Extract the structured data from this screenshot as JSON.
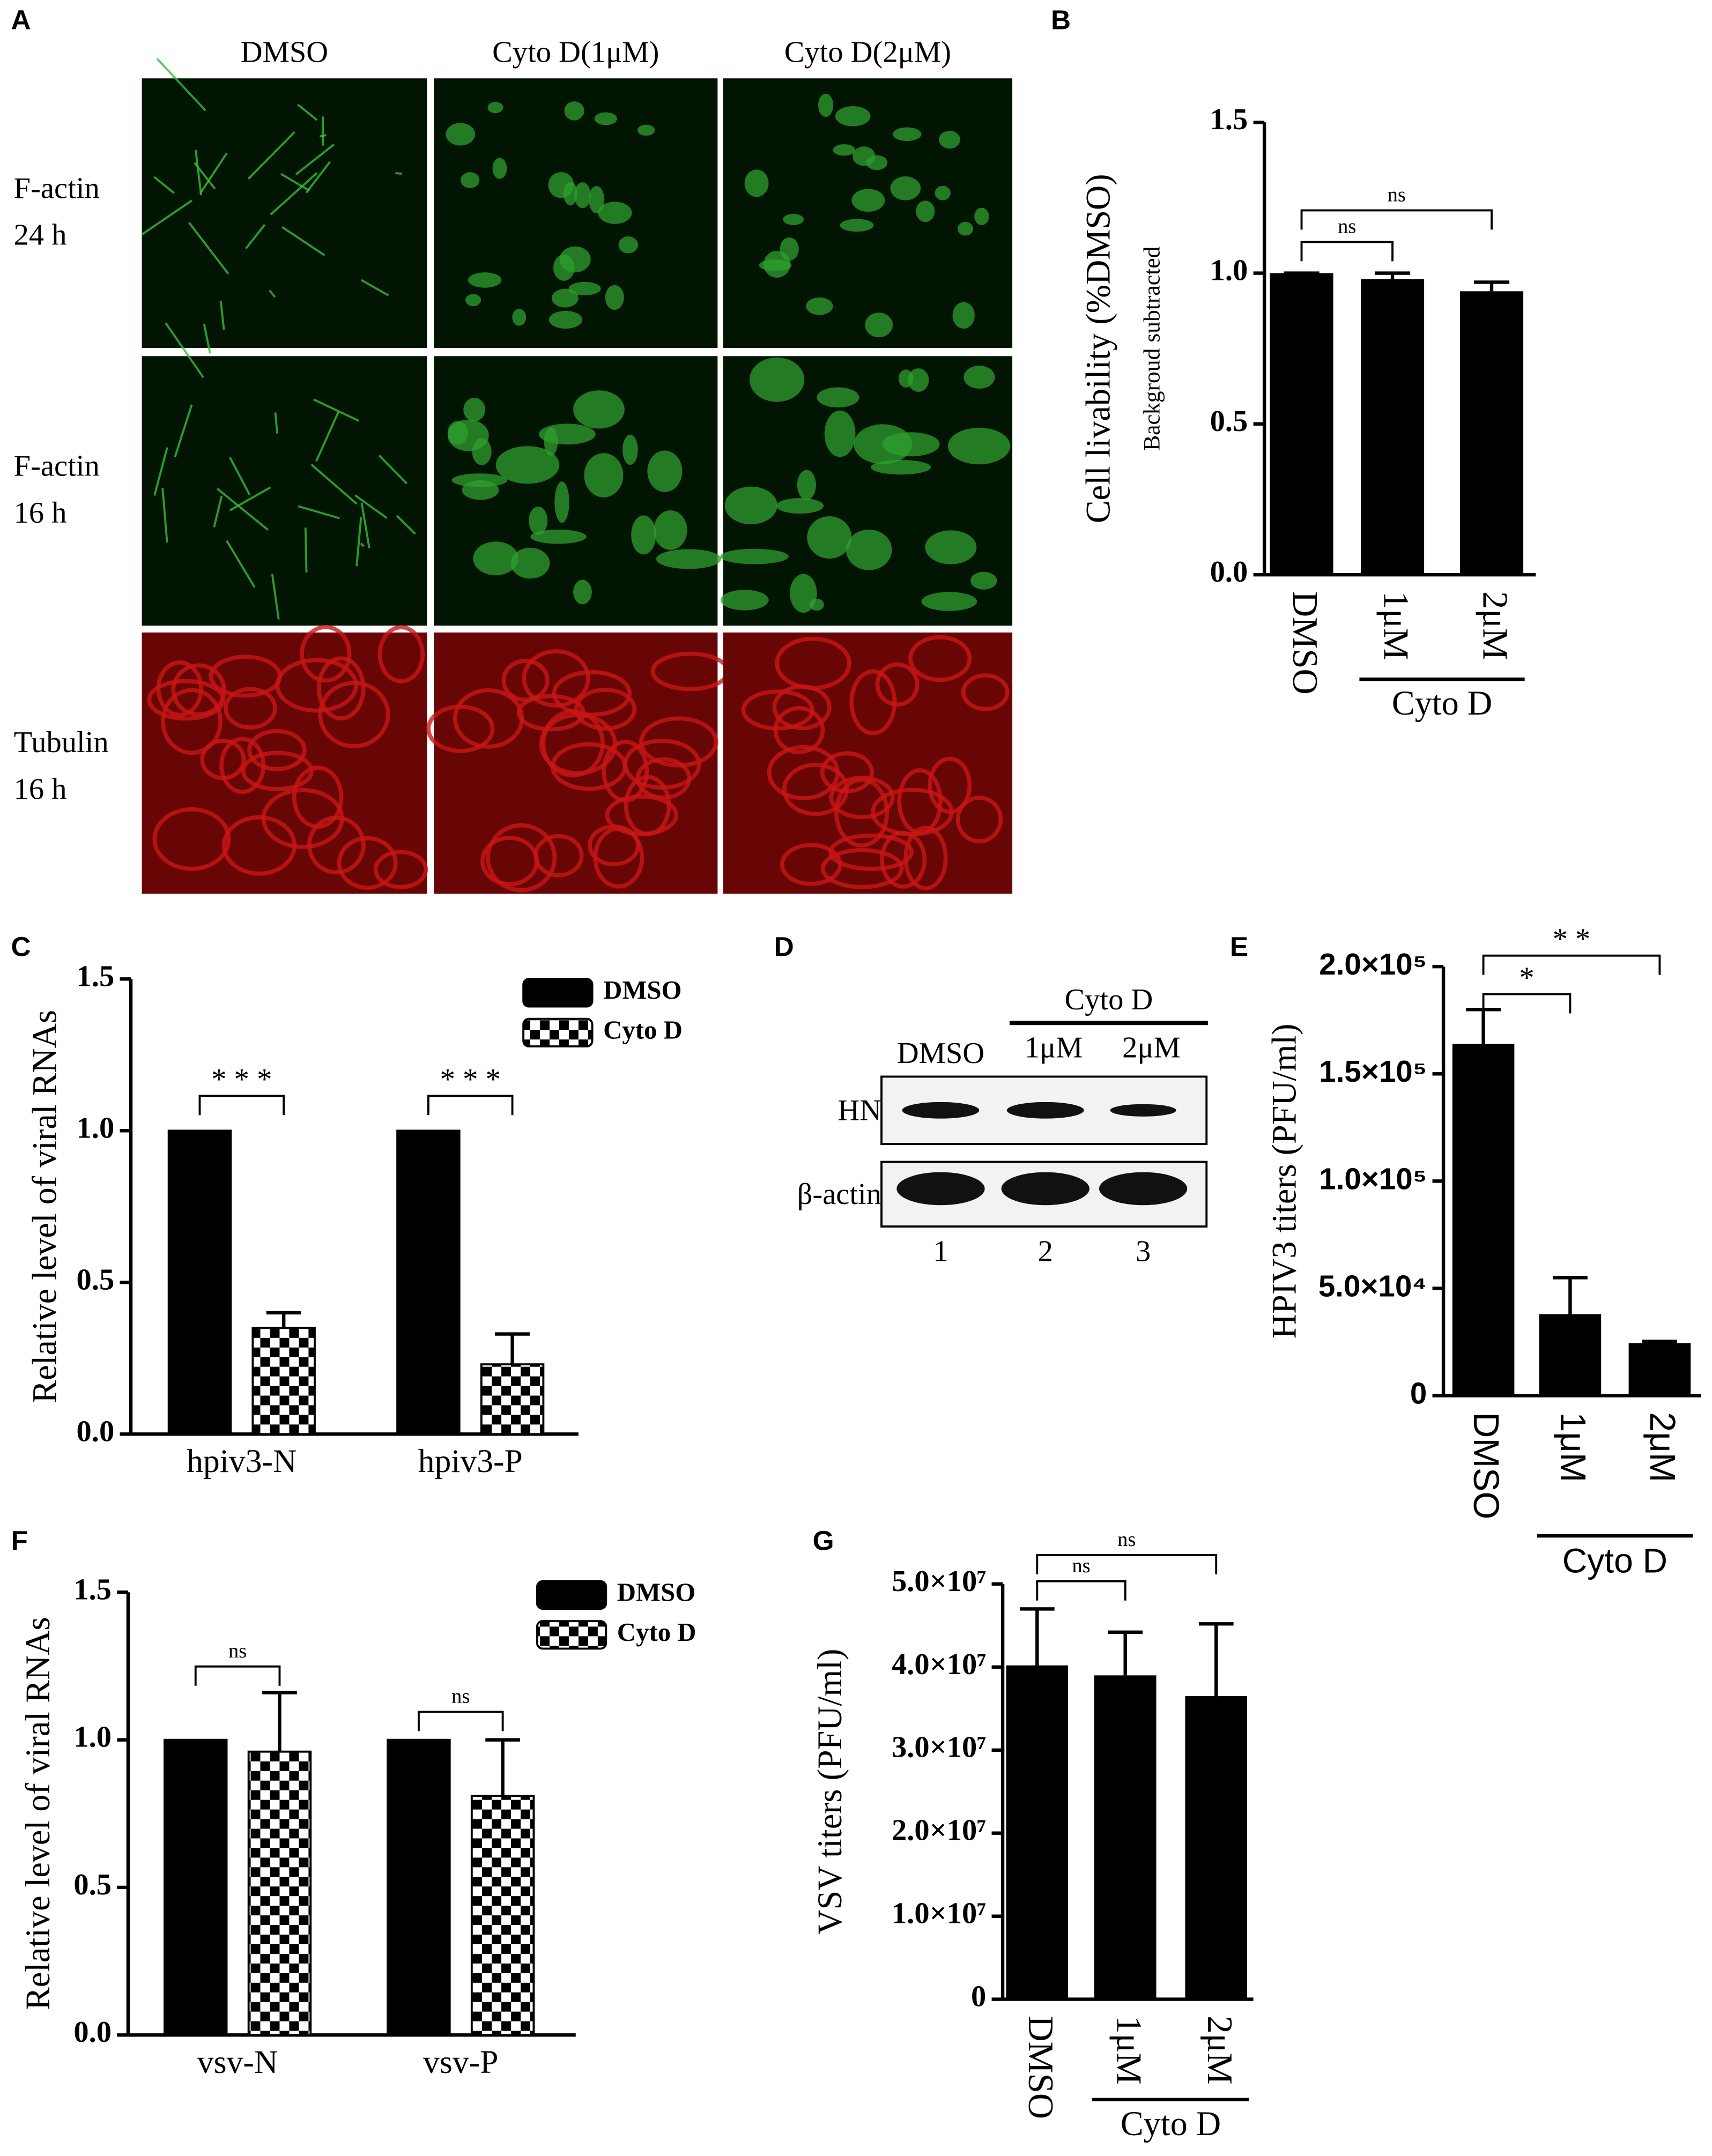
{
  "panel_a": {
    "label": "A",
    "columns": [
      "DMSO",
      "Cyto D(1μM)",
      "Cyto D(2μM)"
    ],
    "rows": [
      [
        "F-actin",
        "24 h"
      ],
      [
        "F-actin",
        "16 h"
      ],
      [
        "Tubulin",
        "16 h"
      ]
    ]
  },
  "panel_d": {
    "label": "D",
    "group_label": "Cyto D",
    "lanes": [
      "DMSO",
      "1μM",
      "2μM"
    ],
    "rows": [
      "HN",
      "β-actin"
    ],
    "lane_numbers": [
      "1",
      "2",
      "3"
    ]
  },
  "chart_data": [
    {
      "type": "bar",
      "label": "B",
      "ylabel": "Cell livability (%DMSO)",
      "ylabel2": "Backgroud subtracted",
      "categories": [
        "DMSO",
        "1μM",
        "2μM"
      ],
      "group_label": "Cyto D",
      "values": [
        1.0,
        0.98,
        0.94
      ],
      "errors": [
        0,
        0.02,
        0.03
      ],
      "color": "#000000",
      "ylim": [
        0,
        1.5
      ],
      "yticks": [
        {
          "value": 0,
          "label": "0.0"
        },
        0.5,
        {
          "value": 1,
          "label": "1.0"
        },
        1.5
      ],
      "annotations": [
        "ns",
        "ns"
      ]
    },
    {
      "type": "bar",
      "label": "C",
      "ylabel": "Relative level of viral RNAs",
      "categories": [
        "hpiv3-N",
        "hpiv3-P"
      ],
      "series": [
        {
          "name": "DMSO",
          "color": "#000000",
          "values": [
            1.0,
            1.0
          ]
        },
        {
          "name": "Cyto D",
          "color": "#000000",
          "pattern": "checker",
          "values": [
            0.35,
            0.23
          ],
          "errors": [
            0.05,
            0.1
          ]
        }
      ],
      "ylim": [
        0,
        1.5
      ],
      "yticks": [
        {
          "value": 0,
          "label": "0.0"
        },
        0.5,
        {
          "value": 1,
          "label": "1.0"
        },
        1.5
      ],
      "annotations": [
        "* * *",
        "* * *"
      ]
    },
    {
      "type": "bar",
      "label": "E",
      "ylabel": "HPIV3 titers (PFU/ml)",
      "categories": [
        "DMSO",
        "1μM",
        "2μM"
      ],
      "group_label": "Cyto D",
      "values": [
        164000,
        38000,
        24500
      ],
      "errors": [
        16000,
        17000,
        800
      ],
      "color": "#000000",
      "ylim": [
        0,
        200000
      ],
      "yticks": [
        0,
        {
          "value": 50000,
          "label": "5.0×10⁴"
        },
        {
          "value": 100000,
          "label": "1.0×10⁵"
        },
        {
          "value": 150000,
          "label": "1.5×10⁵"
        },
        {
          "value": 200000,
          "label": "2.0×10⁵"
        }
      ],
      "annotations": [
        "*",
        "* *"
      ]
    },
    {
      "type": "bar",
      "label": "F",
      "ylabel": "Relative level of viral RNAs",
      "categories": [
        "vsv-N",
        "vsv-P"
      ],
      "series": [
        {
          "name": "DMSO",
          "color": "#000000",
          "values": [
            1.0,
            1.0
          ]
        },
        {
          "name": "Cyto D",
          "color": "#000000",
          "pattern": "checker",
          "values": [
            0.96,
            0.81
          ],
          "errors": [
            0.2,
            0.19
          ]
        }
      ],
      "ylim": [
        0,
        1.5
      ],
      "yticks": [
        {
          "value": 0,
          "label": "0.0"
        },
        0.5,
        {
          "value": 1,
          "label": "1.0"
        },
        1.5
      ],
      "annotations": [
        "ns",
        "ns"
      ]
    },
    {
      "type": "bar",
      "label": "G",
      "ylabel": "VSV titers (PFU/ml)",
      "categories": [
        "DMSO",
        "1μM",
        "2μM"
      ],
      "group_label": "Cyto D",
      "values": [
        40200000,
        39000000,
        36500000
      ],
      "errors": [
        6800000,
        5200000,
        8700000
      ],
      "color": "#000000",
      "ylim": [
        0,
        50000000
      ],
      "yticks": [
        0,
        {
          "value": 10000000,
          "label": "1.0×10⁷"
        },
        {
          "value": 20000000,
          "label": "2.0×10⁷"
        },
        {
          "value": 30000000,
          "label": "3.0×10⁷"
        },
        {
          "value": 40000000,
          "label": "4.0×10⁷"
        },
        {
          "value": 50000000,
          "label": "5.0×10⁷"
        }
      ],
      "annotations": [
        "ns",
        "ns"
      ]
    }
  ]
}
